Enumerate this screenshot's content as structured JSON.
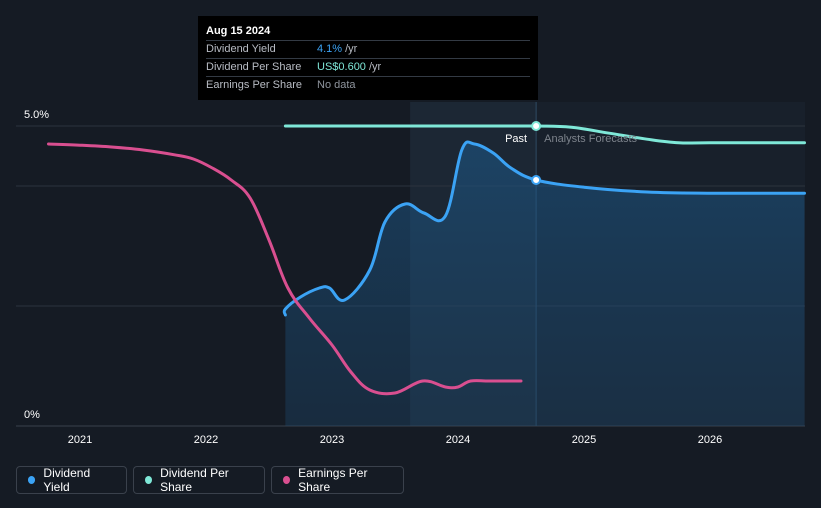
{
  "tooltip": {
    "date": "Aug 15 2024",
    "rows": [
      {
        "label": "Dividend Yield",
        "value": "4.1%",
        "unit": "/yr",
        "color": "#3ba3f5"
      },
      {
        "label": "Dividend Per Share",
        "value": "US$0.600",
        "unit": "/yr",
        "color": "#7fe8d8"
      },
      {
        "label": "Earnings Per Share",
        "value": "No data",
        "unit": "",
        "color": "#6c727b"
      }
    ]
  },
  "legend": [
    {
      "label": "Dividend Yield",
      "color": "#3ba3f5"
    },
    {
      "label": "Dividend Per Share",
      "color": "#7fe8d8"
    },
    {
      "label": "Earnings Per Share",
      "color": "#d94f90"
    }
  ],
  "chart_data": {
    "type": "line",
    "y_tick_labels": [
      "5.0%",
      "0%"
    ],
    "ylim": [
      0,
      5.0
    ],
    "x_tick_labels": [
      "2021",
      "2022",
      "2023",
      "2024",
      "2025",
      "2026"
    ],
    "xlim": [
      2020.75,
      2026.75
    ],
    "grid": true,
    "past_label": "Past",
    "forecast_label": "Analysts Forecasts",
    "past_end_x": 2024.62,
    "forecast_band_start_x": 2023.62,
    "series": [
      {
        "name": "Dividend Yield",
        "color": "#3ba3f5",
        "x": [
          2022.63,
          2022.63,
          2022.75,
          2022.9,
          2022.98,
          2023.1,
          2023.3,
          2023.42,
          2023.58,
          2023.73,
          2023.9,
          2024.03,
          2024.13,
          2024.28,
          2024.42,
          2024.62,
          2025.0,
          2025.5,
          2026.0,
          2026.75
        ],
        "y": [
          1.85,
          1.95,
          2.15,
          2.3,
          2.3,
          2.1,
          2.6,
          3.4,
          3.7,
          3.55,
          3.5,
          4.6,
          4.7,
          4.55,
          4.3,
          4.1,
          3.98,
          3.9,
          3.88,
          3.88
        ]
      },
      {
        "name": "Dividend Per Share",
        "color": "#7fe8d8",
        "x": [
          2022.63,
          2023.0,
          2024.0,
          2024.62,
          2024.9,
          2025.2,
          2025.5,
          2025.75,
          2026.0,
          2026.75
        ],
        "y": [
          5.0,
          5.0,
          5.0,
          5.0,
          4.98,
          4.88,
          4.78,
          4.72,
          4.72,
          4.72
        ]
      },
      {
        "name": "Earnings Per Share",
        "color": "#d94f90",
        "x": [
          2020.75,
          2021.0,
          2021.25,
          2021.5,
          2021.75,
          2021.9,
          2022.05,
          2022.2,
          2022.35,
          2022.5,
          2022.65,
          2022.82,
          2023.0,
          2023.15,
          2023.3,
          2023.5,
          2023.72,
          2023.9,
          2024.0,
          2024.1,
          2024.25,
          2024.5
        ],
        "y": [
          4.7,
          4.68,
          4.65,
          4.6,
          4.52,
          4.45,
          4.3,
          4.1,
          3.8,
          3.1,
          2.3,
          1.8,
          1.35,
          0.9,
          0.6,
          0.55,
          0.75,
          0.65,
          0.65,
          0.75,
          0.75,
          0.75
        ]
      }
    ],
    "markers": [
      {
        "series": "Dividend Per Share",
        "x": 2024.62,
        "y": 5.0
      },
      {
        "series": "Dividend Yield",
        "x": 2024.62,
        "y": 4.1
      }
    ]
  }
}
